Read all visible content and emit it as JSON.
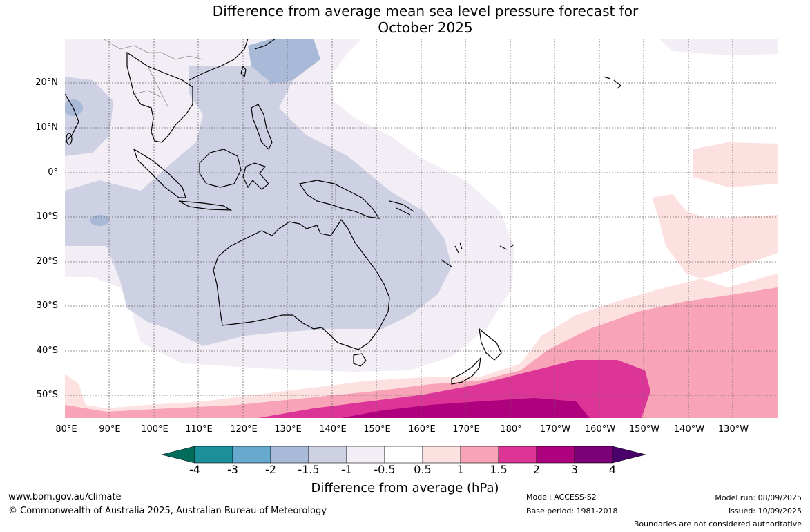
{
  "title_line1": "Difference from average mean sea level pressure forecast for",
  "title_line2": "October 2025",
  "map": {
    "lat_labels": [
      "20°N",
      "10°N",
      "0°",
      "10°S",
      "20°S",
      "30°S",
      "40°S",
      "50°S"
    ],
    "lon_labels": [
      "80°E",
      "90°E",
      "100°E",
      "110°E",
      "120°E",
      "130°E",
      "140°E",
      "150°E",
      "160°E",
      "170°E",
      "180°",
      "170°W",
      "160°W",
      "150°W",
      "140°W",
      "130°W"
    ],
    "lat_range": [
      30,
      -55
    ],
    "lon_range": [
      80,
      240
    ],
    "colors": {
      "ocean_white": "#ffffff",
      "neg_0_5": "#f3eef6",
      "neg_1": "#ced1e3",
      "neg_1_5": "#a9bad8",
      "neg_2": "#67a9cf",
      "pos_0_5": "#fde0e0",
      "pos_1": "#f8a3b8",
      "pos_1_5": "#dd3497",
      "pos_2": "#ae017e",
      "coast": "#000000",
      "border": "#888888",
      "grid": "#666666"
    }
  },
  "colorbar": {
    "labels": [
      "-4",
      "-3",
      "-2",
      "-1.5",
      "-1",
      "-0.5",
      "0.5",
      "1",
      "1.5",
      "2",
      "3",
      "4"
    ],
    "colors": [
      "#016c59",
      "#1c9099",
      "#67a9cf",
      "#a9bad8",
      "#ced1e3",
      "#f3eef6",
      "#ffffff",
      "#fde0e0",
      "#f8a3b8",
      "#dd3497",
      "#ae017e",
      "#7a0177",
      "#49006a"
    ],
    "title": "Difference from average (hPa)"
  },
  "footer": {
    "url": "www.bom.gov.au/climate",
    "copyright": "© Commonwealth of Australia 2025, Australian Bureau of Meteorology",
    "model": "Model: ACCESS-S2",
    "base_period": "Base period: 1981-2018",
    "model_run": "Model run: 08/09/2025",
    "issued": "Issued: 10/09/2025",
    "boundaries": "Boundaries are not considered authoritative"
  }
}
